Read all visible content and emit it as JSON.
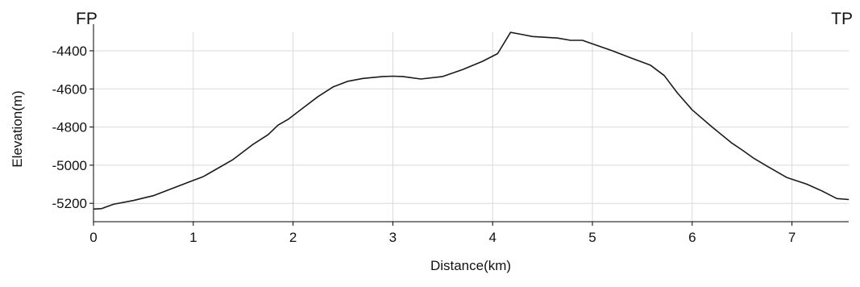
{
  "chart_data": {
    "type": "line",
    "title": "",
    "start_label": "FP",
    "end_label": "TP",
    "xlabel": "Distance(km)",
    "ylabel": "Elevation(m)",
    "xlim": [
      0,
      7.57
    ],
    "ylim": [
      -5300,
      -4300
    ],
    "x_ticks": [
      0,
      1,
      2,
      3,
      4,
      5,
      6,
      7
    ],
    "x_tick_labels": [
      "0",
      "1",
      "2",
      "3",
      "4",
      "5",
      "6",
      "7"
    ],
    "y_ticks": [
      -4400,
      -4600,
      -4800,
      -5000,
      -5200
    ],
    "y_tick_labels": [
      "-4400",
      "-4600",
      "-4800",
      "-5000",
      "-5200"
    ],
    "grid": true,
    "series": [
      {
        "x": [
          0,
          0.08,
          0.2,
          0.4,
          0.6,
          0.8,
          1.0,
          1.1,
          1.2,
          1.4,
          1.6,
          1.75,
          1.85,
          1.95,
          2.1,
          2.25,
          2.4,
          2.55,
          2.7,
          2.9,
          3.0,
          3.1,
          3.28,
          3.5,
          3.7,
          3.9,
          4.05,
          4.18,
          4.3,
          4.4,
          4.65,
          4.78,
          4.9,
          4.98,
          5.2,
          5.4,
          5.58,
          5.72,
          5.85,
          6.0,
          6.2,
          6.4,
          6.5,
          6.62,
          6.75,
          6.95,
          7.15,
          7.3,
          7.45,
          7.57
        ],
        "y": [
          -5230,
          -5228,
          -5205,
          -5185,
          -5160,
          -5120,
          -5080,
          -5060,
          -5030,
          -4970,
          -4890,
          -4840,
          -4790,
          -4760,
          -4700,
          -4640,
          -4590,
          -4560,
          -4545,
          -4535,
          -4533,
          -4535,
          -4548,
          -4535,
          -4498,
          -4455,
          -4415,
          -4303,
          -4315,
          -4325,
          -4333,
          -4345,
          -4345,
          -4360,
          -4400,
          -4440,
          -4475,
          -4530,
          -4620,
          -4710,
          -4800,
          -4885,
          -4920,
          -4965,
          -5005,
          -5065,
          -5100,
          -5135,
          -5175,
          -5180
        ]
      }
    ]
  }
}
